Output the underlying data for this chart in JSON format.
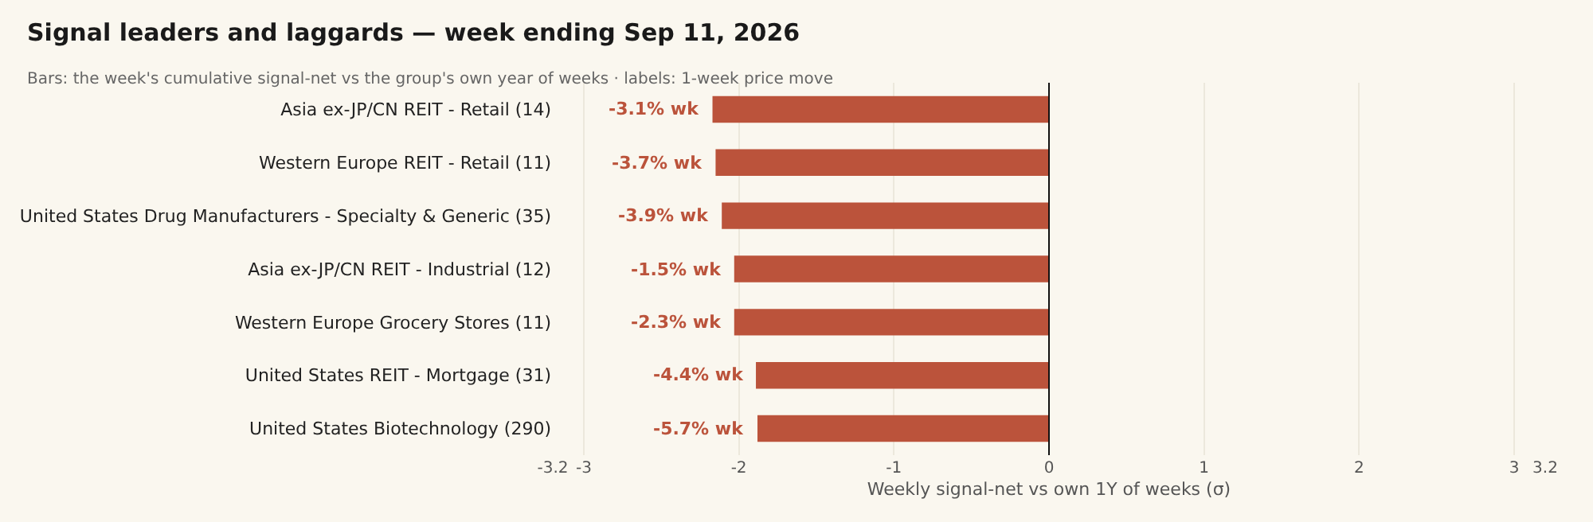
{
  "chart_data": {
    "type": "bar",
    "orientation": "horizontal",
    "title": "Signal leaders and laggards — week ending Sep 11, 2026",
    "subtitle": "Bars: the week's cumulative signal-net vs the group's own year of weeks · labels: 1-week price move",
    "xlabel": "Weekly signal-net vs own 1Y of weeks (σ)",
    "categories": [
      "Asia ex-JP/CN REIT - Retail (14)",
      "Western Europe REIT - Retail (11)",
      "United States Drug Manufacturers - Specialty & Generic (35)",
      "Asia ex-JP/CN REIT - Industrial (12)",
      "Western Europe Grocery Stores (11)",
      "United States REIT - Mortgage (31)",
      "United States Biotechnology (290)"
    ],
    "values": [
      -2.17,
      -2.15,
      -2.11,
      -2.03,
      -2.03,
      -1.89,
      -1.88
    ],
    "annotations": [
      {
        "text": "-3.1% wk",
        "x": -2.17,
        "y": "Asia ex-JP/CN REIT - Retail (14)"
      },
      {
        "text": "-3.7% wk",
        "x": -2.15,
        "y": "Western Europe REIT - Retail (11)"
      },
      {
        "text": "-3.9% wk",
        "x": -2.11,
        "y": "United States Drug Manufacturers - Specialty & Generic (35)"
      },
      {
        "text": "-1.5% wk",
        "x": -2.03,
        "y": "Asia ex-JP/CN REIT - Industrial (12)"
      },
      {
        "text": "-2.3% wk",
        "x": -2.03,
        "y": "Western Europe Grocery Stores (11)"
      },
      {
        "text": "-4.4% wk",
        "x": -1.89,
        "y": "United States REIT - Mortgage (31)"
      },
      {
        "text": "-5.7% wk",
        "x": -1.88,
        "y": "United States Biotechnology (290)"
      }
    ],
    "color": "#bb533b",
    "xlim": [
      -3.2,
      3.2
    ],
    "xticks": [
      -3.2,
      -3,
      -2,
      -1,
      0,
      1,
      2,
      3,
      3.2
    ],
    "ref_lines": [
      {
        "axis": "x",
        "value": 0,
        "color": "#111111"
      }
    ],
    "grid": "x",
    "legend": false
  }
}
